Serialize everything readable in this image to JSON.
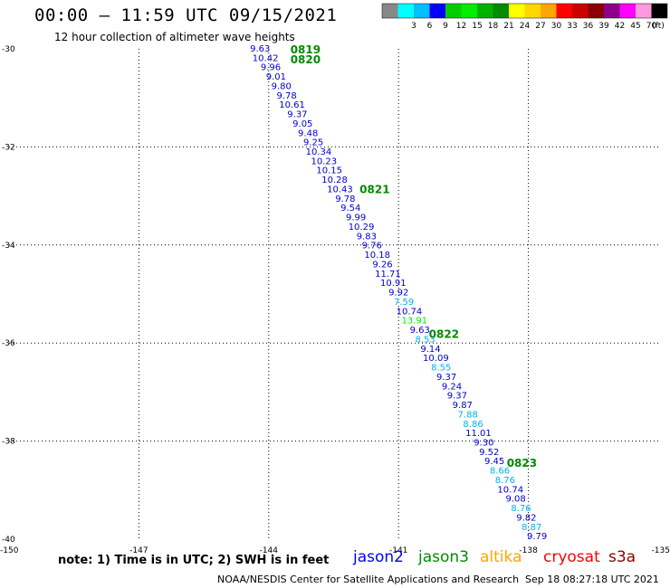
{
  "header": {
    "title": "00:00 – 11:59 UTC 09/15/2021",
    "subtitle": "12 hour collection of altimeter wave heights"
  },
  "colorbar": {
    "unit": "(ft)",
    "bins": [
      {
        "label": "",
        "color": "#888888"
      },
      {
        "label": "3",
        "color": "#00ffff"
      },
      {
        "label": "6",
        "color": "#00bfff"
      },
      {
        "label": "9",
        "color": "#0000ff"
      },
      {
        "label": "12",
        "color": "#00cd00"
      },
      {
        "label": "15",
        "color": "#00ee00"
      },
      {
        "label": "18",
        "color": "#00b200"
      },
      {
        "label": "21",
        "color": "#008b00"
      },
      {
        "label": "24",
        "color": "#ffff00"
      },
      {
        "label": "27",
        "color": "#ffd700"
      },
      {
        "label": "30",
        "color": "#ffa500"
      },
      {
        "label": "33",
        "color": "#ff0000"
      },
      {
        "label": "36",
        "color": "#cd0000"
      },
      {
        "label": "39",
        "color": "#8b0000"
      },
      {
        "label": "42",
        "color": "#8b008b"
      },
      {
        "label": "45",
        "color": "#ff00ff"
      },
      {
        "label": "70",
        "color": "#ff99dd"
      },
      {
        "label": "",
        "color": "#000000"
      }
    ]
  },
  "chart_data": {
    "type": "scatter",
    "xlim": [
      -150,
      -135
    ],
    "ylim": [
      -40,
      -30
    ],
    "x_ticks": [
      "-150",
      "-147",
      "-144",
      "-141",
      "-138",
      "-135"
    ],
    "y_ticks": [
      "-30",
      "-32",
      "-34",
      "-36",
      "-38",
      "-40"
    ],
    "grid": "dotted",
    "track": {
      "x_start": -144.2,
      "y_start": -29.98,
      "x_end": -137.8,
      "y_end": -39.93
    },
    "time_labels": [
      {
        "text": "0819",
        "x": -143.5,
        "y": -30.0,
        "color": "#008b00"
      },
      {
        "text": "0820",
        "x": -143.5,
        "y": -30.2,
        "color": "#008b00"
      },
      {
        "text": "0821",
        "x": -141.9,
        "y": -32.85,
        "color": "#008b00"
      },
      {
        "text": "0822",
        "x": -140.3,
        "y": -35.8,
        "color": "#008b00"
      },
      {
        "text": "0823",
        "x": -138.5,
        "y": -38.43,
        "color": "#008b00"
      }
    ],
    "wave_heights": [
      {
        "v": "9.63",
        "c": "#0000cd"
      },
      {
        "v": "10.42",
        "c": "#0000cd"
      },
      {
        "v": "9.96",
        "c": "#0000cd"
      },
      {
        "v": "9.01",
        "c": "#0000cd"
      },
      {
        "v": "9.80",
        "c": "#0000cd"
      },
      {
        "v": "9.78",
        "c": "#0000cd"
      },
      {
        "v": "10.61",
        "c": "#0000cd"
      },
      {
        "v": "9.37",
        "c": "#0000cd"
      },
      {
        "v": "9.05",
        "c": "#0000cd"
      },
      {
        "v": "9.48",
        "c": "#0000cd"
      },
      {
        "v": "9.25",
        "c": "#0000cd"
      },
      {
        "v": "10.34",
        "c": "#0000cd"
      },
      {
        "v": "10.23",
        "c": "#0000cd"
      },
      {
        "v": "10.15",
        "c": "#0000cd"
      },
      {
        "v": "10.28",
        "c": "#0000cd"
      },
      {
        "v": "10.43",
        "c": "#0000cd"
      },
      {
        "v": "9.78",
        "c": "#0000cd"
      },
      {
        "v": "9.54",
        "c": "#0000cd"
      },
      {
        "v": "9.99",
        "c": "#0000cd"
      },
      {
        "v": "10.29",
        "c": "#0000cd"
      },
      {
        "v": "9.83",
        "c": "#0000cd"
      },
      {
        "v": "9.76",
        "c": "#0000cd"
      },
      {
        "v": "10.18",
        "c": "#0000cd"
      },
      {
        "v": "9.26",
        "c": "#0000cd"
      },
      {
        "v": "11.71",
        "c": "#0000cd"
      },
      {
        "v": "10.91",
        "c": "#0000cd"
      },
      {
        "v": "9.92",
        "c": "#0000cd"
      },
      {
        "v": "7.59",
        "c": "#00b2ee"
      },
      {
        "v": "10.74",
        "c": "#0000cd"
      },
      {
        "v": "13.91",
        "c": "#00ee00"
      },
      {
        "v": "9.63",
        "c": "#0000cd"
      },
      {
        "v": "8.53",
        "c": "#00b2ee"
      },
      {
        "v": "9.14",
        "c": "#0000cd"
      },
      {
        "v": "10.09",
        "c": "#0000cd"
      },
      {
        "v": "8.55",
        "c": "#00b2ee"
      },
      {
        "v": "9.37",
        "c": "#0000cd"
      },
      {
        "v": "9.24",
        "c": "#0000cd"
      },
      {
        "v": "9.37",
        "c": "#0000cd"
      },
      {
        "v": "9.87",
        "c": "#0000cd"
      },
      {
        "v": "7.88",
        "c": "#00b2ee"
      },
      {
        "v": "8.86",
        "c": "#00b2ee"
      },
      {
        "v": "11.01",
        "c": "#0000cd"
      },
      {
        "v": "9.30",
        "c": "#0000cd"
      },
      {
        "v": "9.52",
        "c": "#0000cd"
      },
      {
        "v": "9.45",
        "c": "#0000cd"
      },
      {
        "v": "8.66",
        "c": "#00b2ee"
      },
      {
        "v": "8.76",
        "c": "#00b2ee"
      },
      {
        "v": "10.74",
        "c": "#0000cd"
      },
      {
        "v": "9.08",
        "c": "#0000cd"
      },
      {
        "v": "8.76",
        "c": "#00b2ee"
      },
      {
        "v": "9.82",
        "c": "#0000cd"
      },
      {
        "v": "8.87",
        "c": "#00b2ee"
      },
      {
        "v": "9.79",
        "c": "#0000cd"
      }
    ]
  },
  "footer": {
    "note": "note:  1) Time is in UTC; 2) SWH is in feet",
    "credit": "NOAA/NESDIS Center for Satellite Applications and Research",
    "timestamp": "Sep 18 08:27:18 UTC 2021",
    "missions": [
      {
        "name": "jason2",
        "color": "#0000ff"
      },
      {
        "name": "jason3",
        "color": "#008b00"
      },
      {
        "name": "altika",
        "color": "#ffa500"
      },
      {
        "name": "cryosat",
        "color": "#ff0000"
      },
      {
        "name": "s3a",
        "color": "#8b0000"
      }
    ]
  }
}
